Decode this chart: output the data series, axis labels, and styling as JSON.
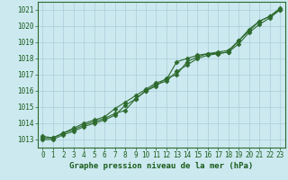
{
  "x": [
    0,
    1,
    2,
    3,
    4,
    5,
    6,
    7,
    8,
    9,
    10,
    11,
    12,
    13,
    14,
    15,
    16,
    17,
    18,
    19,
    20,
    21,
    22,
    23
  ],
  "line1": [
    1013.1,
    1013.1,
    1013.4,
    1013.6,
    1013.9,
    1014.1,
    1014.3,
    1014.6,
    1014.8,
    1015.5,
    1016.0,
    1016.4,
    1016.6,
    1017.2,
    1017.6,
    1018.0,
    1018.2,
    1018.3,
    1018.4,
    1018.9,
    1019.6,
    1020.1,
    1020.5,
    1021.0
  ],
  "line2": [
    1013.2,
    1013.1,
    1013.4,
    1013.7,
    1014.0,
    1014.2,
    1014.4,
    1014.9,
    1015.3,
    1015.7,
    1016.1,
    1016.5,
    1016.7,
    1017.8,
    1018.0,
    1018.2,
    1018.3,
    1018.4,
    1018.5,
    1019.1,
    1019.8,
    1020.3,
    1020.6,
    1021.1
  ],
  "line3": [
    1013.0,
    1013.0,
    1013.3,
    1013.5,
    1013.8,
    1014.0,
    1014.2,
    1014.5,
    1015.1,
    1015.5,
    1016.0,
    1016.3,
    1016.8,
    1017.0,
    1017.8,
    1018.1,
    1018.3,
    1018.3,
    1018.4,
    1019.1,
    1019.7,
    1020.3,
    1020.6,
    1021.0
  ],
  "ylim": [
    1012.5,
    1021.5
  ],
  "xlim": [
    -0.5,
    23.5
  ],
  "yticks": [
    1013,
    1014,
    1015,
    1016,
    1017,
    1018,
    1019,
    1020,
    1021
  ],
  "xticks": [
    0,
    1,
    2,
    3,
    4,
    5,
    6,
    7,
    8,
    9,
    10,
    11,
    12,
    13,
    14,
    15,
    16,
    17,
    18,
    19,
    20,
    21,
    22,
    23
  ],
  "xlabel": "Graphe pression niveau de la mer (hPa)",
  "line_color": "#2d6a2d",
  "marker_color": "#2d6a2d",
  "bg_color": "#cce9f0",
  "grid_color": "#aacdd8",
  "axis_color": "#2d6a2d",
  "text_color": "#1a5c1a",
  "marker": "D",
  "marker_size": 2.5,
  "linewidth": 0.8,
  "xlabel_fontsize": 6.5,
  "tick_fontsize": 5.5
}
